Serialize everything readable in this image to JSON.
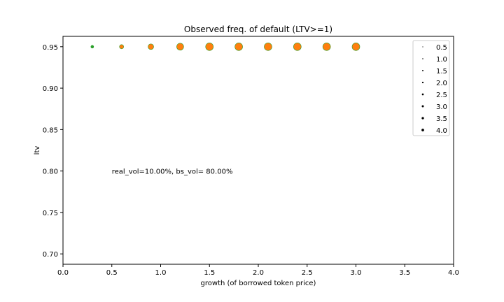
{
  "chart_data": {
    "type": "scatter",
    "title": "Observed freq. of default (LTV>=1)",
    "xlabel": "growth (of borrowed token price)",
    "ylabel": "ltv",
    "xlim": [
      0.0,
      4.0
    ],
    "ylim": [
      0.6875,
      0.9625
    ],
    "xticks": [
      "0.0",
      "0.5",
      "1.0",
      "1.5",
      "2.0",
      "2.5",
      "3.0",
      "3.5",
      "4.0"
    ],
    "yticks": [
      "0.70",
      "0.75",
      "0.80",
      "0.85",
      "0.90",
      "0.95"
    ],
    "grid": false,
    "legend_position": "top-right",
    "legend": [
      "0.5",
      "1.0",
      "1.5",
      "2.0",
      "2.5",
      "3.0",
      "3.5",
      "4.0"
    ],
    "points": [
      {
        "x": 0.3,
        "y": 0.95,
        "size": 1,
        "color": "#2ca02c"
      },
      {
        "x": 0.6,
        "y": 0.95,
        "size": 2,
        "color": "#ff7f0e"
      },
      {
        "x": 0.9,
        "y": 0.95,
        "size": 3,
        "color": "#ff7f0e"
      },
      {
        "x": 1.2,
        "y": 0.95,
        "size": 4,
        "color": "#ff7f0e"
      },
      {
        "x": 1.5,
        "y": 0.95,
        "size": 4.5,
        "color": "#ff7f0e"
      },
      {
        "x": 1.8,
        "y": 0.95,
        "size": 4.5,
        "color": "#ff7f0e"
      },
      {
        "x": 2.1,
        "y": 0.95,
        "size": 4.5,
        "color": "#ff7f0e"
      },
      {
        "x": 2.4,
        "y": 0.95,
        "size": 4.5,
        "color": "#ff7f0e"
      },
      {
        "x": 2.7,
        "y": 0.95,
        "size": 4.5,
        "color": "#ff7f0e"
      },
      {
        "x": 3.0,
        "y": 0.95,
        "size": 4.5,
        "color": "#ff7f0e"
      }
    ],
    "annotation": {
      "text": "real_vol=10.00%, bs_vol= 80.00%",
      "x": 0.5,
      "y": 0.8
    }
  }
}
